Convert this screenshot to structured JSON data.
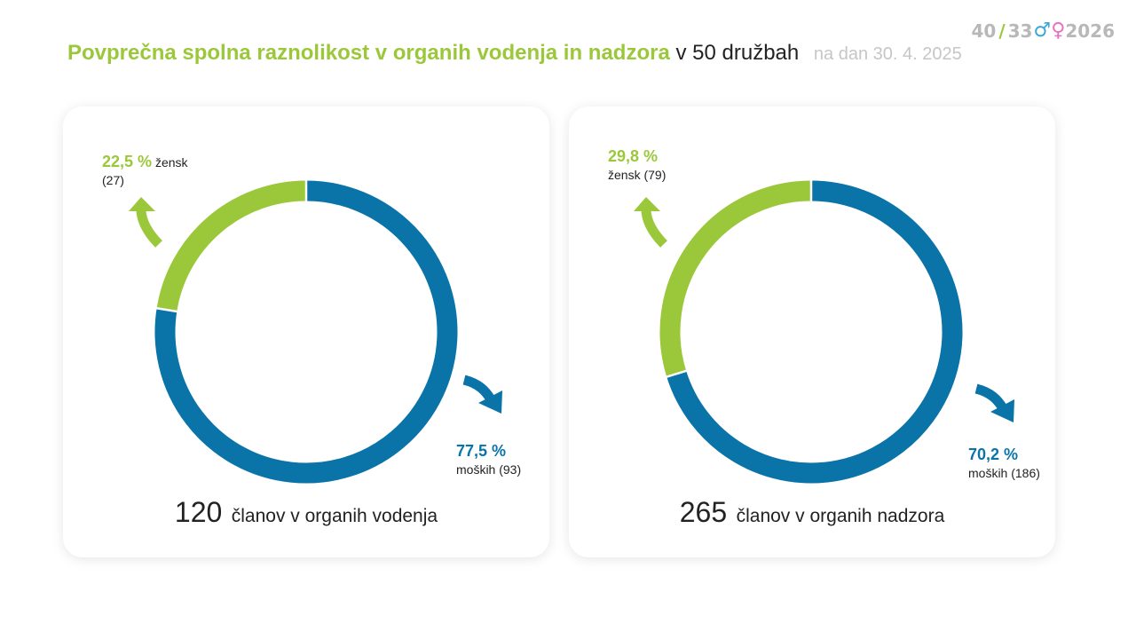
{
  "logo": {
    "left": "40",
    "slash": "/",
    "right": "33",
    "male": "♂",
    "female": "♀",
    "year": "2026"
  },
  "title": {
    "bold": "Povprečna spolna raznolikost v organih vodenja in nadzora",
    "rest": "v 50 družbah",
    "date": "na dan 30. 4. 2025"
  },
  "colors": {
    "women": "#9bc83a",
    "men": "#0a73a8"
  },
  "panels": [
    {
      "women_pct": "22,5 %",
      "women_label": "žensk",
      "women_count": "(27)",
      "men_pct": "77,5 %",
      "men_label": "moških (93)",
      "total": "120",
      "total_label": "članov v organih vodenja"
    },
    {
      "women_pct": "29,8 %",
      "women_label": "žensk (79)",
      "men_pct": "70,2 %",
      "men_label": "moških (186)",
      "total": "265",
      "total_label": "članov v organih nadzora"
    }
  ],
  "chart_data": [
    {
      "type": "pie",
      "categories": [
        "žensk",
        "moških"
      ],
      "values": [
        22.5,
        77.5
      ],
      "counts": [
        27,
        93
      ],
      "total": 120,
      "title": "članov v organih vodenja"
    },
    {
      "type": "pie",
      "categories": [
        "žensk",
        "moških"
      ],
      "values": [
        29.8,
        70.2
      ],
      "counts": [
        79,
        186
      ],
      "total": 265,
      "title": "članov v organih nadzora"
    }
  ]
}
